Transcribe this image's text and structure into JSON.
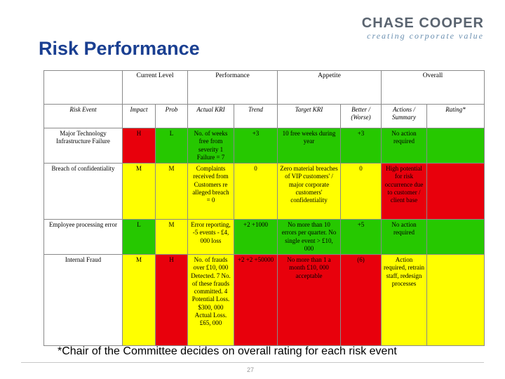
{
  "logo": {
    "name": "CHASE COOPER",
    "tagline": "creating corporate value"
  },
  "title": "Risk Performance",
  "table": {
    "groups": [
      "",
      "Current Level",
      "Performance",
      "Appetite",
      "Overall"
    ],
    "columns": [
      "Risk Event",
      "Impact",
      "Prob",
      "Actual KRI",
      "Trend",
      "Target KRI",
      "Better / (Worse)",
      "Actions / Summary",
      "Rating*"
    ],
    "rows": [
      {
        "risk_event": "Major Technology Infrastructure Failure",
        "impact": "H",
        "prob": "L",
        "actual_kri": "No. of weeks free from severity 1 Failure = 7",
        "trend": "+3",
        "target_kri": "10 free weeks during year",
        "better_worse": "+3",
        "actions": "No action required",
        "rating": ""
      },
      {
        "risk_event": "Breach of confidentiality",
        "impact": "M",
        "prob": "M",
        "actual_kri": "Complaints received from Customers re alleged breach = 0",
        "trend": "0",
        "target_kri": "Zero material breaches of VIP customers' / major corporate customers' confidentiality",
        "better_worse": "0",
        "actions": "High potential for risk occurrence due to customer / client base",
        "rating": ""
      },
      {
        "risk_event": "Employee processing error",
        "impact": "L",
        "prob": "M",
        "actual_kri": "Error reporting, -5 events - £4, 000 loss",
        "trend": "+2 +1000",
        "target_kri": "No more than 10 errors per quarter. No single event > £10, 000",
        "better_worse": "+5",
        "actions": "No action required",
        "rating": ""
      },
      {
        "risk_event": "Internal Fraud",
        "impact": "M",
        "prob": "H",
        "actual_kri": "No. of frauds over £10, 000 Detected. 7 No. of these frauds committed. 4 Potential Loss. $300, 000 Actual Loss. £65, 000",
        "trend": "+2 +2 +50000",
        "target_kri": "No more than 1 a month £10, 000 acceptable",
        "better_worse": "(6)",
        "actions": "Action required, retrain staff, redesign processes",
        "rating": ""
      }
    ]
  },
  "footnote": "*Chair of the Committee decides on overall rating for each risk event",
  "page_number": "27",
  "colors": {
    "red": "#e8000c",
    "yellow": "#ffff00",
    "green": "#26c800",
    "title": "#1a3f91"
  }
}
